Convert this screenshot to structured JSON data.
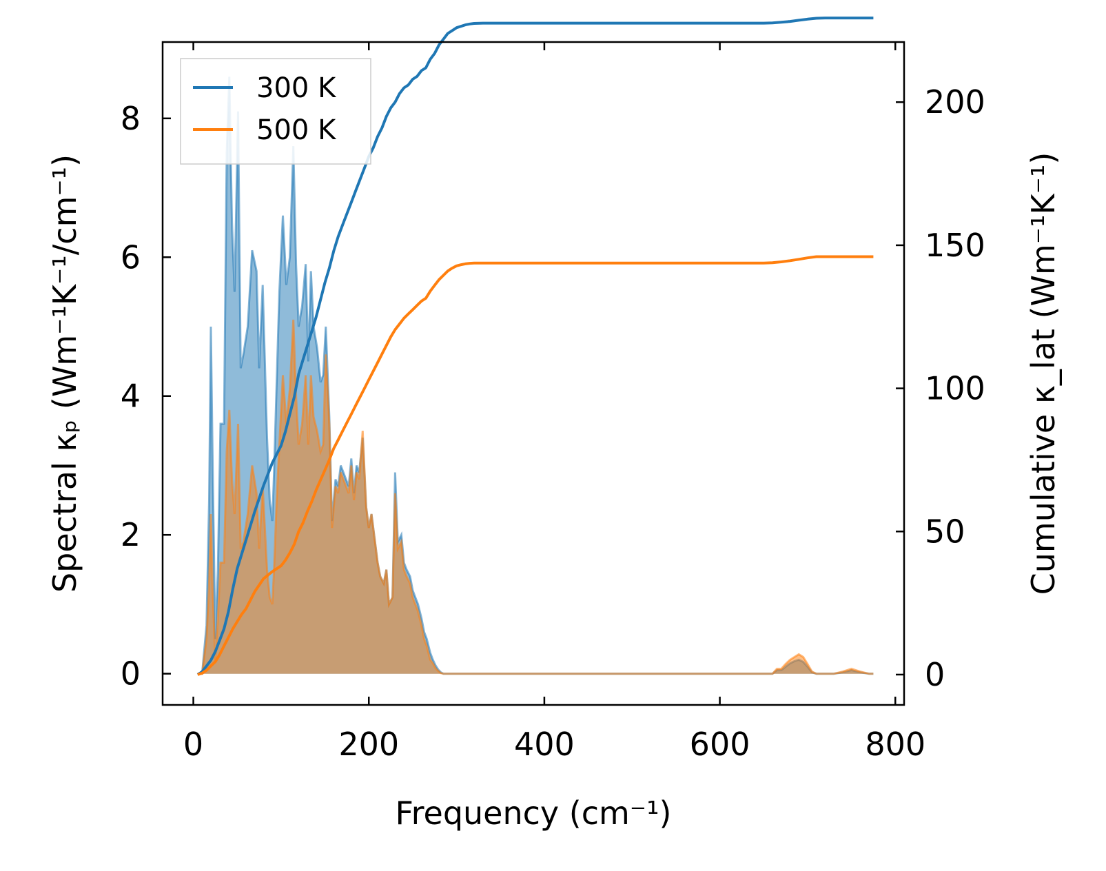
{
  "chart_data": {
    "type": "line",
    "title": "",
    "xlabel": "Frequency (cm⁻¹)",
    "ylabel_left": "Spectral κₚ (Wm⁻¹K⁻¹/cm⁻¹)",
    "ylabel_right": "Cumulative κ_lat (Wm⁻¹K⁻¹)",
    "xlim": [
      -35,
      810
    ],
    "ylim_left": [
      -0.45,
      9.1
    ],
    "ylim_right": [
      -10.6,
      221
    ],
    "xticks": [
      0,
      200,
      400,
      600,
      800
    ],
    "yticks_left": [
      0,
      2,
      4,
      6,
      8
    ],
    "yticks_right": [
      0,
      50,
      100,
      150,
      200
    ],
    "legend": {
      "position": "top-left",
      "entries": [
        "300 K",
        "500 K"
      ]
    },
    "series": [
      {
        "name": "300 K",
        "color": "#1f77b4",
        "spectral": {
          "x": [
            5,
            10,
            15,
            18,
            20,
            22,
            25,
            28,
            31,
            35,
            38,
            41,
            44,
            47,
            51,
            54,
            57,
            62,
            67,
            72,
            75,
            79,
            84,
            87,
            90,
            92,
            95,
            98,
            102,
            106,
            110,
            114,
            117,
            120,
            124,
            128,
            131,
            134,
            137,
            141,
            145,
            148,
            151,
            155,
            158,
            162,
            165,
            168,
            171,
            174,
            177,
            180,
            183,
            186,
            189,
            193,
            197,
            200,
            203,
            207,
            210,
            213,
            217,
            220,
            223,
            227,
            230,
            233,
            237,
            240,
            243,
            247,
            250,
            253,
            256,
            260,
            263,
            266,
            268,
            270,
            273,
            276,
            279,
            282,
            285,
            288,
            291,
            295,
            300,
            305,
            310,
            315,
            320,
            325,
            330,
            340,
            350,
            360,
            400,
            500,
            600,
            640,
            650,
            655,
            660,
            665,
            670,
            675,
            680,
            685,
            690,
            695,
            700,
            705,
            710,
            720,
            730,
            740,
            750,
            760,
            770,
            775
          ],
          "y": [
            0,
            0,
            0.7,
            2.5,
            5,
            3,
            0.5,
            1.5,
            3.6,
            3.6,
            7.5,
            8.6,
            6.5,
            5.5,
            8.1,
            4.4,
            4.6,
            5,
            6.1,
            5.8,
            4.4,
            5.6,
            3.4,
            2.5,
            2.2,
            2.9,
            4.2,
            5.5,
            6.6,
            5.6,
            6,
            7.6,
            5.9,
            5,
            5.3,
            5.9,
            4.5,
            5.8,
            5,
            4.7,
            4.2,
            4.3,
            5,
            3.7,
            2.2,
            2.8,
            2.7,
            3,
            2.9,
            2.8,
            2.7,
            3.1,
            2.6,
            3,
            2.9,
            3.4,
            2.4,
            2.1,
            2.3,
            1.9,
            1.6,
            1.4,
            1.3,
            1.5,
            1,
            1.1,
            2.9,
            1.9,
            2,
            1.6,
            1.5,
            1.4,
            1.2,
            1.1,
            1,
            0.8,
            0.6,
            0.5,
            0.4,
            0.3,
            0.2,
            0.12,
            0.06,
            0.02,
            0,
            0,
            0,
            0,
            0,
            0,
            0,
            0,
            0,
            0,
            0,
            0,
            0,
            0,
            0,
            0,
            0,
            0,
            0,
            0,
            0,
            0.05,
            0.05,
            0.1,
            0.15,
            0.18,
            0.2,
            0.17,
            0.1,
            0.02,
            0,
            0,
            0,
            0.02,
            0.05,
            0.02,
            0,
            0
          ]
        },
        "cumulative": {
          "x": [
            5,
            10,
            15,
            20,
            25,
            30,
            35,
            40,
            45,
            50,
            55,
            60,
            70,
            80,
            90,
            100,
            105,
            110,
            115,
            120,
            125,
            130,
            135,
            140,
            145,
            150,
            155,
            160,
            165,
            170,
            175,
            180,
            185,
            190,
            195,
            200,
            205,
            210,
            215,
            220,
            225,
            230,
            235,
            240,
            245,
            250,
            255,
            260,
            265,
            270,
            275,
            280,
            285,
            290,
            295,
            300,
            305,
            310,
            315,
            320,
            330,
            340,
            350,
            400,
            500,
            600,
            650,
            660,
            670,
            680,
            690,
            700,
            710,
            720,
            740,
            760,
            775
          ],
          "y": [
            0,
            1,
            3,
            5,
            8,
            12,
            16,
            22,
            30,
            37,
            42,
            47,
            57,
            66,
            74,
            80,
            85,
            91,
            97,
            105,
            110,
            115,
            120,
            125,
            131,
            137,
            142,
            148,
            153,
            157,
            161,
            165,
            169,
            173,
            177,
            181,
            184,
            188,
            191,
            195,
            198,
            200,
            203,
            205,
            206,
            208,
            209,
            211,
            212,
            215,
            217,
            220,
            222,
            224,
            225,
            226,
            226.5,
            227,
            227.3,
            227.5,
            227.6,
            227.6,
            227.6,
            227.6,
            227.6,
            227.6,
            227.6,
            227.7,
            227.9,
            228.2,
            228.6,
            229,
            229.3,
            229.4,
            229.4,
            229.4,
            229.4
          ]
        }
      },
      {
        "name": "500 K",
        "color": "#ff7f0e",
        "spectral": {
          "x": [
            5,
            10,
            15,
            18,
            20,
            22,
            25,
            28,
            31,
            35,
            38,
            41,
            44,
            47,
            51,
            54,
            57,
            62,
            67,
            72,
            75,
            79,
            84,
            87,
            90,
            92,
            95,
            98,
            102,
            106,
            110,
            114,
            117,
            120,
            124,
            128,
            131,
            134,
            137,
            141,
            145,
            148,
            151,
            155,
            158,
            162,
            165,
            168,
            171,
            174,
            177,
            180,
            183,
            186,
            189,
            193,
            197,
            200,
            203,
            207,
            210,
            213,
            217,
            220,
            223,
            227,
            230,
            233,
            237,
            240,
            243,
            247,
            250,
            253,
            256,
            260,
            263,
            266,
            268,
            270,
            273,
            276,
            279,
            282,
            285,
            288,
            291,
            295,
            300,
            305,
            310,
            315,
            320,
            325,
            330,
            340,
            350,
            360,
            400,
            500,
            600,
            640,
            650,
            655,
            660,
            665,
            670,
            675,
            680,
            685,
            690,
            695,
            700,
            705,
            710,
            720,
            730,
            740,
            750,
            760,
            770,
            775
          ],
          "y": [
            0,
            0,
            0.5,
            1.3,
            2.3,
            1.2,
            0.2,
            0.8,
            1.6,
            1.6,
            3.2,
            3.8,
            2.8,
            2.3,
            3.6,
            1.8,
            1.9,
            2.3,
            3,
            2.6,
            1.8,
            2.7,
            1.5,
            1.1,
            1,
            1.5,
            2.5,
            3.3,
            4.3,
            3.6,
            4.1,
            5.1,
            4,
            3.3,
            3.6,
            4.3,
            3.3,
            4.3,
            3.7,
            3.5,
            3.2,
            3.3,
            4.6,
            3.6,
            2.1,
            2.7,
            2.6,
            2.9,
            2.8,
            2.7,
            2.6,
            3,
            2.5,
            2.9,
            2.8,
            3.5,
            2.4,
            2.1,
            2.3,
            1.9,
            1.6,
            1.4,
            1.3,
            1.5,
            1,
            1.1,
            2.6,
            1.8,
            1.9,
            1.5,
            1.4,
            1.3,
            1.1,
            1,
            0.9,
            0.7,
            0.5,
            0.4,
            0.3,
            0.2,
            0.15,
            0.08,
            0.04,
            0.01,
            0,
            0,
            0,
            0,
            0,
            0,
            0,
            0,
            0,
            0,
            0,
            0,
            0,
            0,
            0,
            0,
            0,
            0,
            0,
            0,
            0,
            0.07,
            0.07,
            0.14,
            0.2,
            0.24,
            0.28,
            0.24,
            0.14,
            0.03,
            0,
            0,
            0,
            0.03,
            0.07,
            0.03,
            0,
            0
          ]
        },
        "cumulative": {
          "x": [
            5,
            10,
            15,
            20,
            25,
            30,
            35,
            40,
            45,
            50,
            55,
            60,
            70,
            80,
            90,
            100,
            105,
            110,
            115,
            120,
            125,
            130,
            135,
            140,
            145,
            150,
            155,
            160,
            165,
            170,
            175,
            180,
            185,
            190,
            195,
            200,
            205,
            210,
            215,
            220,
            225,
            230,
            235,
            240,
            245,
            250,
            255,
            260,
            265,
            270,
            275,
            280,
            285,
            290,
            295,
            300,
            305,
            310,
            315,
            320,
            330,
            340,
            350,
            400,
            500,
            600,
            650,
            660,
            670,
            680,
            690,
            700,
            710,
            720,
            740,
            760,
            775
          ],
          "y": [
            0,
            0.5,
            1.5,
            3,
            4.5,
            7,
            10,
            13,
            16,
            18.5,
            21,
            23,
            29,
            33.5,
            36,
            38,
            40,
            42.5,
            45.5,
            50,
            53,
            57,
            60.5,
            64.5,
            68,
            71.5,
            75,
            79,
            82,
            85,
            88,
            91,
            94,
            97,
            100,
            103,
            106,
            109,
            112,
            115,
            118,
            120.5,
            122.5,
            124.5,
            126,
            127.5,
            129,
            130.5,
            131.5,
            134,
            136,
            138,
            139.5,
            141,
            142,
            142.8,
            143.2,
            143.5,
            143.7,
            143.8,
            143.8,
            143.8,
            143.8,
            143.8,
            143.8,
            143.8,
            143.8,
            143.9,
            144.2,
            144.6,
            145.1,
            145.6,
            146,
            146,
            146,
            146,
            146
          ]
        }
      }
    ]
  }
}
